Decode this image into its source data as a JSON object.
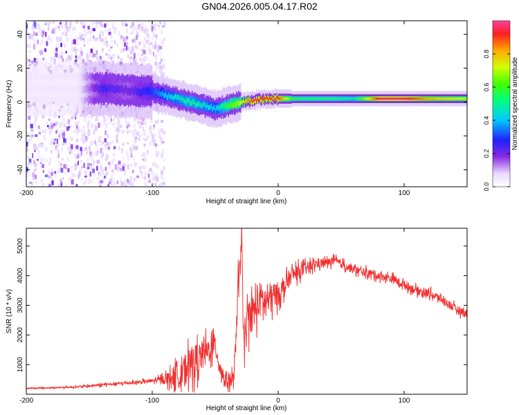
{
  "figure": {
    "title": "GN04.2026.005.04.17.R02"
  },
  "chart_data": [
    {
      "type": "heatmap",
      "title": "GN04.2026.005.04.17.R02",
      "xlabel": "Height of straight line (km)",
      "ylabel": "Frequency (Hz)",
      "xlim": [
        -200,
        150
      ],
      "ylim": [
        -50,
        48
      ],
      "xticks": [
        -200,
        -100,
        0,
        100
      ],
      "xtick_labels": [
        "-200",
        "-100",
        "0",
        "100"
      ],
      "yticks": [
        -40,
        -20,
        0,
        20,
        40
      ],
      "ytick_labels": [
        "-40",
        "-20",
        "0",
        "20",
        "40"
      ],
      "colorbar": {
        "label": "Normalized spectral amplitude",
        "range": [
          0,
          1
        ],
        "ticks": [
          0.0,
          0.2,
          0.4,
          0.6,
          0.8
        ],
        "tick_labels": [
          "0.0",
          "0.2",
          "0.4",
          "0.6",
          "0.8"
        ]
      },
      "ridge": {
        "x": [
          -160,
          -140,
          -120,
          -100,
          -90,
          -80,
          -70,
          -60,
          -50,
          -40,
          -30,
          -20,
          -10,
          0,
          10,
          20,
          40,
          60,
          80,
          100,
          120,
          150
        ],
        "frequency": [
          8,
          8,
          7,
          6,
          4,
          2,
          0,
          -2,
          -4,
          -2,
          0,
          1,
          2,
          2,
          2,
          2,
          2,
          2,
          2,
          2,
          2,
          2
        ],
        "amplitude": [
          0.05,
          0.25,
          0.2,
          0.3,
          0.4,
          0.45,
          0.5,
          0.45,
          0.4,
          0.6,
          0.7,
          0.95,
          0.9,
          0.9,
          0.6,
          0.55,
          0.55,
          0.5,
          0.95,
          0.95,
          0.8,
          0.7
        ]
      }
    },
    {
      "type": "line",
      "xlabel": "Height of straight line (km)",
      "ylabel": "SNR (10 * v/v)",
      "xlim": [
        -200,
        150
      ],
      "ylim": [
        0,
        5600
      ],
      "xticks": [
        -200,
        -100,
        0,
        100
      ],
      "xtick_labels": [
        "-200",
        "-100",
        "0",
        "100"
      ],
      "yticks": [
        1000,
        2000,
        3000,
        4000,
        5000
      ],
      "ytick_labels": [
        "1000",
        "2000",
        "3000",
        "4000",
        "5000"
      ],
      "series": [
        {
          "name": "SNR",
          "color": "#f03030",
          "x": [
            -200,
            -190,
            -180,
            -170,
            -160,
            -150,
            -140,
            -130,
            -120,
            -110,
            -100,
            -95,
            -90,
            -85,
            -80,
            -75,
            -70,
            -65,
            -60,
            -55,
            -50,
            -45,
            -40,
            -35,
            -32,
            -30,
            -29,
            -28,
            -27,
            -26,
            -25,
            -22,
            -20,
            -15,
            -10,
            -5,
            0,
            5,
            10,
            20,
            30,
            40,
            45,
            50,
            60,
            70,
            80,
            90,
            100,
            110,
            120,
            130,
            140,
            150
          ],
          "values": [
            200,
            210,
            220,
            230,
            250,
            280,
            320,
            350,
            380,
            410,
            450,
            480,
            520,
            560,
            640,
            800,
            1000,
            1150,
            1300,
            1500,
            1650,
            700,
            450,
            500,
            3500,
            4200,
            5600,
            3200,
            1300,
            1900,
            2300,
            2800,
            2700,
            3200,
            3100,
            3300,
            3400,
            3600,
            4000,
            4200,
            4400,
            4450,
            4500,
            4400,
            4200,
            4100,
            4000,
            3900,
            3700,
            3500,
            3400,
            3200,
            2900,
            2700
          ],
          "noise": [
            40,
            40,
            45,
            50,
            60,
            70,
            80,
            90,
            100,
            110,
            120,
            180,
            300,
            500,
            800,
            1000,
            1100,
            1000,
            900,
            800,
            700,
            500,
            500,
            600,
            1000,
            1000,
            300,
            1000,
            1000,
            1000,
            1200,
            1200,
            1200,
            1100,
            1000,
            900,
            700,
            600,
            500,
            400,
            300,
            250,
            250,
            250,
            250,
            250,
            250,
            250,
            250,
            250,
            250,
            250,
            250,
            250
          ]
        }
      ]
    }
  ]
}
